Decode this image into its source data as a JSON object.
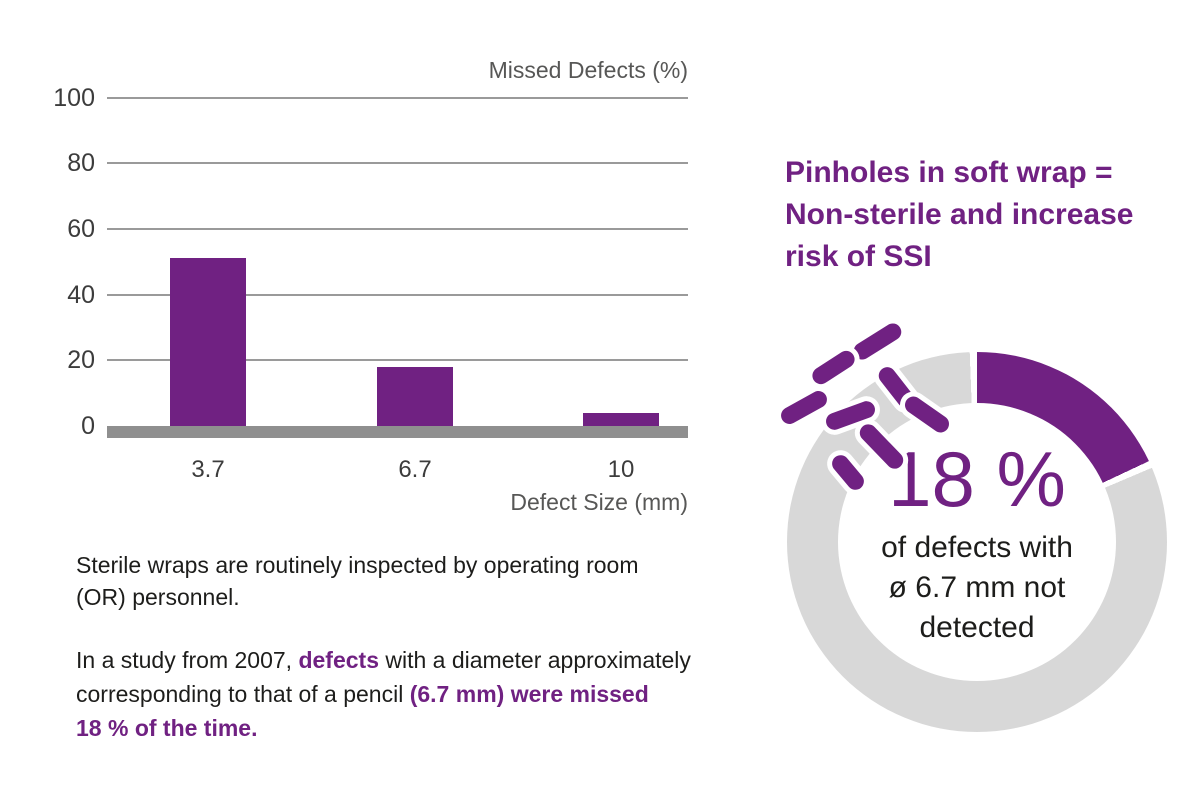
{
  "colors": {
    "purple": "#702182",
    "ring_gray": "#d8d8d8",
    "grid_gray": "#9a9a9a",
    "axis_gray": "#8f8f8f",
    "label_gray": "#575756",
    "tick_gray": "#3c3c3c",
    "text_black": "#1d1d1b",
    "background": "#ffffff"
  },
  "chart_data": [
    {
      "type": "bar",
      "title": "Missed Defects (%)",
      "xlabel": "Defect Size (mm)",
      "ylabel": "",
      "categories": [
        "3.7",
        "6.7",
        "10"
      ],
      "values": [
        51,
        18,
        4
      ],
      "yticks": [
        100,
        80,
        60,
        40,
        20,
        0
      ],
      "ylim": [
        0,
        100
      ],
      "grid": true,
      "legend_position": "none",
      "bar_color": "#702182"
    },
    {
      "type": "pie",
      "subtype": "donut",
      "value": 18,
      "remainder": 82,
      "center_label": "18 %",
      "desc_lines": [
        "of defects with",
        "ø 6.7 mm not",
        "detected"
      ],
      "filled_color": "#702182",
      "rest_color": "#d8d8d8",
      "start_angle_deg": 0,
      "gap_deg": 2.2
    }
  ],
  "caption": {
    "para1_lines": [
      "Sterile wraps are routinely inspected by operating room",
      "(OR) personnel."
    ],
    "para2_lines": [
      [
        {
          "t": "In a study from 2007, "
        },
        {
          "t": "defects",
          "em": true
        },
        {
          "t": " with a diameter approximately"
        }
      ],
      [
        {
          "t": "corresponding to that of a pencil "
        },
        {
          "t": "(6.7 mm) were missed",
          "em": true
        }
      ],
      [
        {
          "t": "18 % of the time.",
          "em": true
        }
      ]
    ]
  },
  "right": {
    "heading_lines": [
      "Pinholes in soft wrap =",
      "Non-sterile and increase",
      "risk of SSI"
    ]
  },
  "icons": [
    {
      "name": "bacteria-icon",
      "shape": "purple rounded capsule"
    }
  ]
}
